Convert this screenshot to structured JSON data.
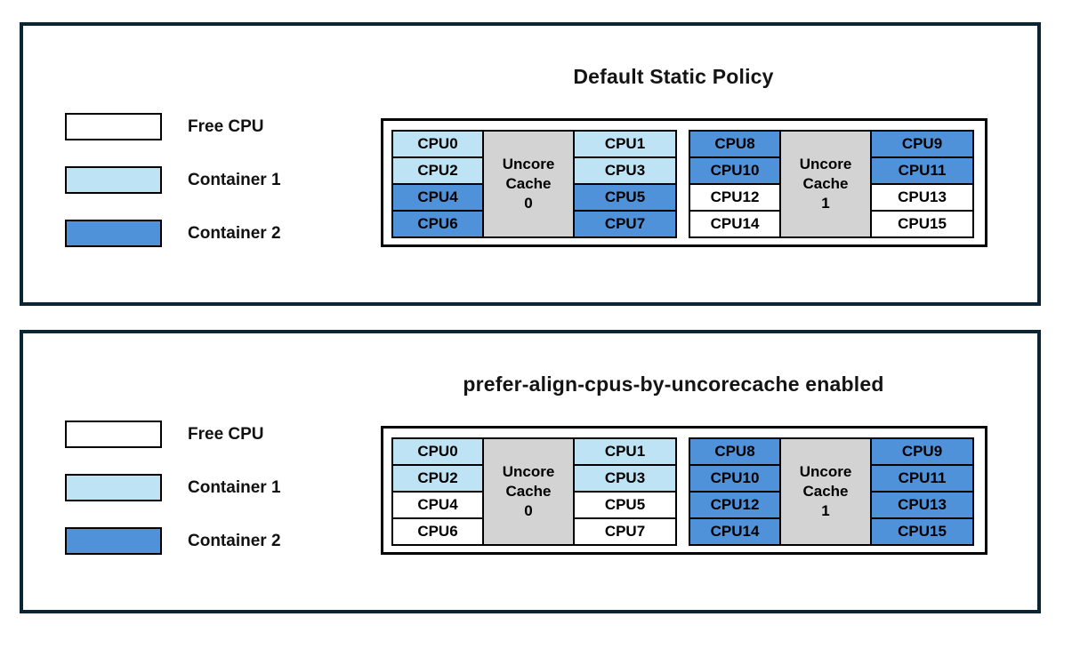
{
  "colors": {
    "free": "#ffffff",
    "container1": "#bde3f5",
    "container2": "#4f92d9",
    "cache": "#d3d3d3",
    "panel_border": "#0a2533",
    "cell_border": "#000000"
  },
  "legend": {
    "items": [
      {
        "label": "Free CPU",
        "type": "free"
      },
      {
        "label": "Container 1",
        "type": "container1"
      },
      {
        "label": "Container 2",
        "type": "container2"
      }
    ]
  },
  "panels": [
    {
      "title": "Default Static Policy",
      "groups": [
        {
          "cache_lines": [
            "Uncore",
            "Cache",
            "0"
          ],
          "left": [
            {
              "label": "CPU0",
              "type": "container1"
            },
            {
              "label": "CPU2",
              "type": "container1"
            },
            {
              "label": "CPU4",
              "type": "container2"
            },
            {
              "label": "CPU6",
              "type": "container2"
            }
          ],
          "right": [
            {
              "label": "CPU1",
              "type": "container1"
            },
            {
              "label": "CPU3",
              "type": "container1"
            },
            {
              "label": "CPU5",
              "type": "container2"
            },
            {
              "label": "CPU7",
              "type": "container2"
            }
          ]
        },
        {
          "cache_lines": [
            "Uncore",
            "Cache",
            "1"
          ],
          "left": [
            {
              "label": "CPU8",
              "type": "container2"
            },
            {
              "label": "CPU10",
              "type": "container2"
            },
            {
              "label": "CPU12",
              "type": "free"
            },
            {
              "label": "CPU14",
              "type": "free"
            }
          ],
          "right": [
            {
              "label": "CPU9",
              "type": "container2"
            },
            {
              "label": "CPU11",
              "type": "container2"
            },
            {
              "label": "CPU13",
              "type": "free"
            },
            {
              "label": "CPU15",
              "type": "free"
            }
          ]
        }
      ]
    },
    {
      "title": "prefer-align-cpus-by-uncorecache enabled",
      "groups": [
        {
          "cache_lines": [
            "Uncore",
            "Cache",
            "0"
          ],
          "left": [
            {
              "label": "CPU0",
              "type": "container1"
            },
            {
              "label": "CPU2",
              "type": "container1"
            },
            {
              "label": "CPU4",
              "type": "free"
            },
            {
              "label": "CPU6",
              "type": "free"
            }
          ],
          "right": [
            {
              "label": "CPU1",
              "type": "container1"
            },
            {
              "label": "CPU3",
              "type": "container1"
            },
            {
              "label": "CPU5",
              "type": "free"
            },
            {
              "label": "CPU7",
              "type": "free"
            }
          ]
        },
        {
          "cache_lines": [
            "Uncore",
            "Cache",
            "1"
          ],
          "left": [
            {
              "label": "CPU8",
              "type": "container2"
            },
            {
              "label": "CPU10",
              "type": "container2"
            },
            {
              "label": "CPU12",
              "type": "container2"
            },
            {
              "label": "CPU14",
              "type": "container2"
            }
          ],
          "right": [
            {
              "label": "CPU9",
              "type": "container2"
            },
            {
              "label": "CPU11",
              "type": "container2"
            },
            {
              "label": "CPU13",
              "type": "container2"
            },
            {
              "label": "CPU15",
              "type": "container2"
            }
          ]
        }
      ]
    }
  ]
}
